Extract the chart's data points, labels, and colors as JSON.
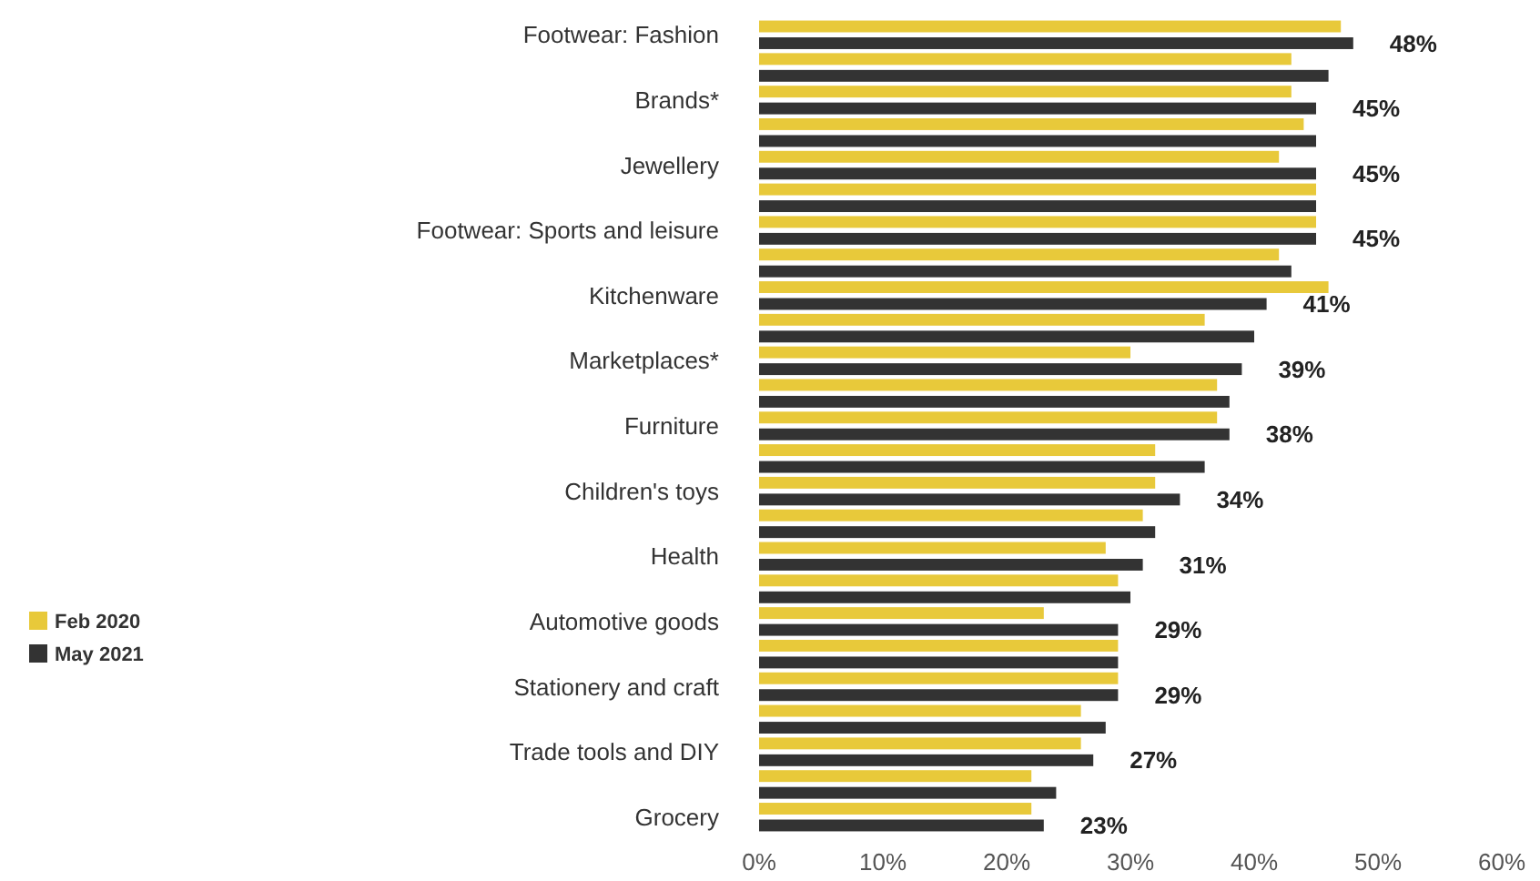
{
  "chart_data": {
    "type": "bar",
    "orientation": "horizontal",
    "categories": [
      "Footwear: Fashion",
      null,
      "Brands*",
      null,
      "Jewellery",
      null,
      "Footwear: Sports and leisure",
      null,
      "Kitchenware",
      null,
      "Marketplaces*",
      null,
      "Furniture",
      null,
      "Children's toys",
      null,
      "Health",
      null,
      "Automotive goods",
      null,
      "Stationery and craft",
      null,
      "Trade tools and DIY",
      null,
      "Grocery"
    ],
    "series": [
      {
        "name": "Feb 2020",
        "color": "#e8c93a",
        "values": [
          47,
          43,
          43,
          44,
          42,
          45,
          45,
          42,
          46,
          36,
          30,
          37,
          37,
          32,
          32,
          31,
          28,
          29,
          23,
          29,
          29,
          26,
          26,
          22,
          22
        ]
      },
      {
        "name": "May 2021",
        "color": "#333333",
        "values": [
          48,
          46,
          45,
          45,
          45,
          45,
          45,
          43,
          41,
          40,
          39,
          38,
          38,
          36,
          34,
          32,
          31,
          30,
          29,
          29,
          29,
          28,
          27,
          24,
          23
        ],
        "value_labels": [
          "48%",
          null,
          "45%",
          null,
          "45%",
          null,
          "45%",
          null,
          "41%",
          null,
          "39%",
          null,
          "38%",
          null,
          "34%",
          null,
          "31%",
          null,
          "29%",
          null,
          "29%",
          null,
          "27%",
          null,
          "23%"
        ]
      }
    ],
    "xlim": [
      0,
      60
    ],
    "xticks": [
      {
        "value": 0,
        "label": "0%"
      },
      {
        "value": 10,
        "label": "10%"
      },
      {
        "value": 20,
        "label": "20%"
      },
      {
        "value": 30,
        "label": "30%"
      },
      {
        "value": 40,
        "label": "40%"
      },
      {
        "value": 50,
        "label": "50%"
      },
      {
        "value": 60,
        "label": "60%"
      }
    ],
    "legend": "left",
    "grid": false
  }
}
